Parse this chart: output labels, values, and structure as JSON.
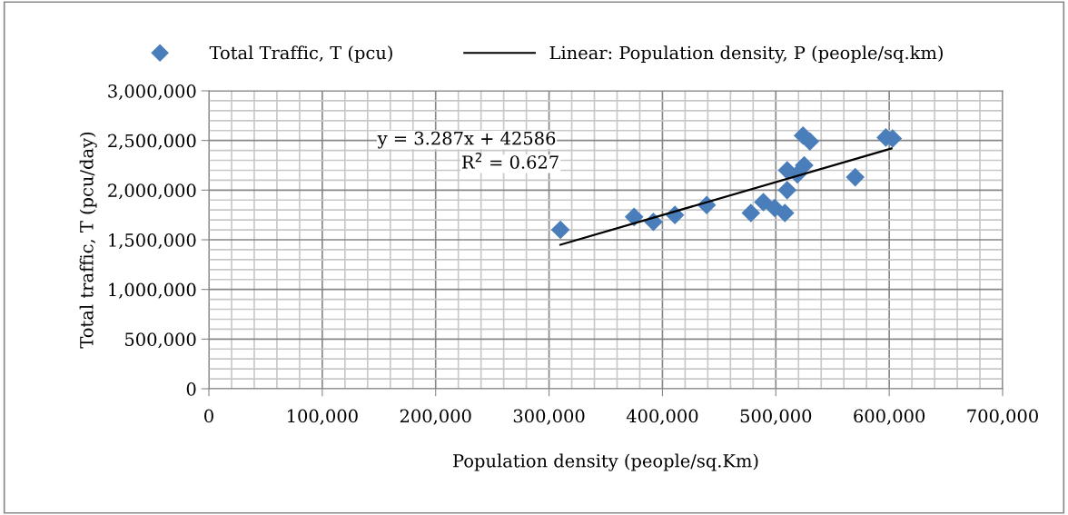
{
  "chart_data": {
    "type": "scatter",
    "xlabel": "Population density (people/sq.Km)",
    "ylabel": "Total traffic, T (pcu/day)",
    "xlim": [
      0,
      700000
    ],
    "xticks": [
      {
        "value": 0,
        "label": "0"
      },
      {
        "value": 100000,
        "label": "100,000"
      },
      {
        "value": 200000,
        "label": "200,000"
      },
      {
        "value": 300000,
        "label": "300,000"
      },
      {
        "value": 400000,
        "label": "400,000"
      },
      {
        "value": 500000,
        "label": "500,000"
      },
      {
        "value": 600000,
        "label": "600,000"
      },
      {
        "value": 700000,
        "label": "700,000"
      }
    ],
    "ylim": [
      0,
      3000000
    ],
    "yticks": [
      {
        "value": 0,
        "label": "0"
      },
      {
        "value": 500000,
        "label": "500,000"
      },
      {
        "value": 1000000,
        "label": "1,000,000"
      },
      {
        "value": 1500000,
        "label": "1,500,000"
      },
      {
        "value": 2000000,
        "label": "2,000,000"
      },
      {
        "value": 2500000,
        "label": "2,500,000"
      },
      {
        "value": 3000000,
        "label": "3,000,000"
      }
    ],
    "grid": true,
    "legend": "top",
    "series": [
      {
        "name": "Total Traffic, T (pcu)",
        "marker": "diamond",
        "color": "#4a7ebb",
        "x": [
          310000,
          375000,
          392000,
          411000,
          439000,
          478000,
          489000,
          499000,
          508000,
          510000,
          510000,
          519000,
          525000,
          524000,
          530000,
          570000,
          597000,
          603000
        ],
        "values": [
          1600000,
          1730000,
          1680000,
          1750000,
          1850000,
          1770000,
          1880000,
          1820000,
          1770000,
          2000000,
          2200000,
          2160000,
          2250000,
          2550000,
          2490000,
          2130000,
          2530000,
          2520000
        ]
      },
      {
        "name": "Linear: Population density, P (people/sq.km)",
        "type": "line",
        "color": "#000000",
        "x": [
          310000,
          602000
        ],
        "values": [
          1450000,
          2420000
        ]
      }
    ],
    "annotations": [
      "y = 3.287x + 42586",
      "R$^{2}$ = 0.627"
    ]
  }
}
